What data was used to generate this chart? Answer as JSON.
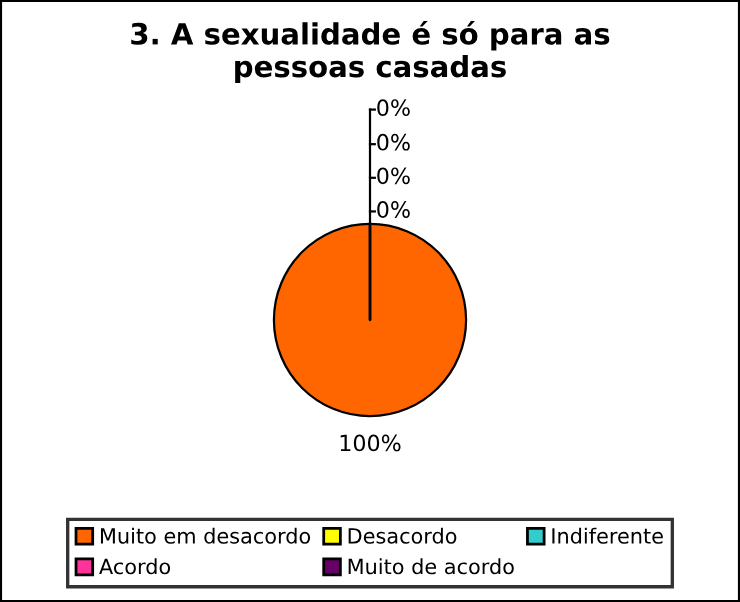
{
  "chart_data": {
    "type": "pie",
    "title": "3. A sexualidade é só para as\npessoas casadas",
    "categories": [
      "Muito em desacordo",
      "Desacordo",
      "Indiferente",
      "Acordo",
      "Muito de acordo"
    ],
    "values": [
      100,
      0,
      0,
      0,
      0
    ],
    "colors": [
      "#ff6600",
      "#ffff00",
      "#33cccc",
      "#ff3399",
      "#660066"
    ],
    "value_labels": [
      "100%",
      "0%",
      "0%",
      "0%",
      "0%"
    ],
    "legend": "bottom"
  }
}
